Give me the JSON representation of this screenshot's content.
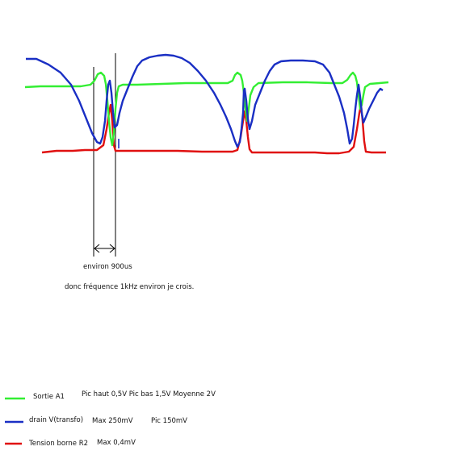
{
  "annotation": {
    "duration": "environ 900us",
    "frequency": "donc fréquence 1kHz environ je crois."
  },
  "legend": [
    {
      "name": "Sortie A1",
      "color": "#33ee33",
      "note": "Pic haut 0,5V   Pic bas 1,5V   Moyenne  2V"
    },
    {
      "name": "drain V(transfo)",
      "color": "#1a2fc4",
      "note": "Max 250mV",
      "note2": "Pic  150mV"
    },
    {
      "name": "Tension borne R2",
      "color": "#e01010",
      "note": "Max 0,4mV"
    }
  ]
}
